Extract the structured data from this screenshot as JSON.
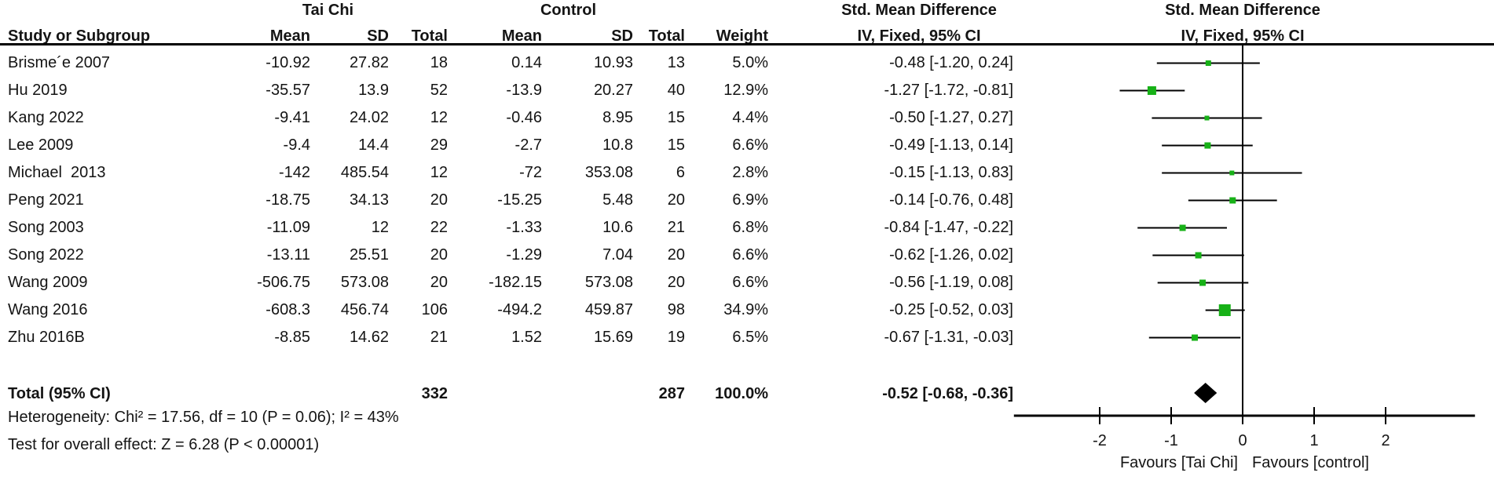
{
  "header": {
    "group1": "Tai Chi",
    "group2": "Control",
    "effect_col_title": "Std. Mean Difference",
    "effect_col_sub": "IV, Fixed, 95% CI",
    "plot_col_title": "Std. Mean Difference",
    "plot_col_sub": "IV, Fixed, 95% CI",
    "col_study": "Study or Subgroup",
    "col_mean1": "Mean",
    "col_sd1": "SD",
    "col_total1": "Total",
    "col_mean2": "Mean",
    "col_sd2": "SD",
    "col_total2": "Total",
    "col_weight": "Weight"
  },
  "total": {
    "label": "Total (95% CI)",
    "total1": "332",
    "total2": "287",
    "weight": "100.0%",
    "ci_text": "-0.52 [-0.68, -0.36]"
  },
  "footnotes": {
    "heterogeneity": "Heterogeneity: Chi² = 17.56, df = 10 (P = 0.06); I² = 43%",
    "overall_effect": "Test for overall effect: Z = 6.28 (P < 0.00001)"
  },
  "colors": {
    "marker_green": "#17B117",
    "line_black": "#000000",
    "diamond_black": "#000000"
  },
  "chart_data": {
    "type": "forest",
    "title": "Std. Mean Difference, IV, Fixed, 95% CI",
    "x_axis": {
      "ticks": [
        -2,
        -1,
        0,
        1,
        2
      ],
      "min": -3.2,
      "max": 3.25,
      "favours_left": "Favours [Tai Chi]",
      "favours_right": "Favours [control]"
    },
    "studies": [
      {
        "name": "Brisme´e 2007",
        "mean1": "-10.92",
        "sd1": "27.82",
        "total1": "18",
        "mean2": "0.14",
        "sd2": "10.93",
        "total2": "13",
        "weight": "5.0%",
        "weight_pct": 5.0,
        "ci_text": "-0.48 [-1.20, 0.24]",
        "est": -0.48,
        "lo": -1.2,
        "hi": 0.24
      },
      {
        "name": "Hu 2019",
        "mean1": "-35.57",
        "sd1": "13.9",
        "total1": "52",
        "mean2": "-13.9",
        "sd2": "20.27",
        "total2": "40",
        "weight": "12.9%",
        "weight_pct": 12.9,
        "ci_text": "-1.27 [-1.72, -0.81]",
        "est": -1.27,
        "lo": -1.72,
        "hi": -0.81
      },
      {
        "name": "Kang 2022",
        "mean1": "-9.41",
        "sd1": "24.02",
        "total1": "12",
        "mean2": "-0.46",
        "sd2": "8.95",
        "total2": "15",
        "weight": "4.4%",
        "weight_pct": 4.4,
        "ci_text": "-0.50 [-1.27, 0.27]",
        "est": -0.5,
        "lo": -1.27,
        "hi": 0.27
      },
      {
        "name": "Lee 2009",
        "mean1": "-9.4",
        "sd1": "14.4",
        "total1": "29",
        "mean2": "-2.7",
        "sd2": "10.8",
        "total2": "15",
        "weight": "6.6%",
        "weight_pct": 6.6,
        "ci_text": "-0.49 [-1.13, 0.14]",
        "est": -0.49,
        "lo": -1.13,
        "hi": 0.14
      },
      {
        "name": "Michael  2013",
        "mean1": "-142",
        "sd1": "485.54",
        "total1": "12",
        "mean2": "-72",
        "sd2": "353.08",
        "total2": "6",
        "weight": "2.8%",
        "weight_pct": 2.8,
        "ci_text": "-0.15 [-1.13, 0.83]",
        "est": -0.15,
        "lo": -1.13,
        "hi": 0.83
      },
      {
        "name": "Peng 2021",
        "mean1": "-18.75",
        "sd1": "34.13",
        "total1": "20",
        "mean2": "-15.25",
        "sd2": "5.48",
        "total2": "20",
        "weight": "6.9%",
        "weight_pct": 6.9,
        "ci_text": "-0.14 [-0.76, 0.48]",
        "est": -0.14,
        "lo": -0.76,
        "hi": 0.48
      },
      {
        "name": "Song 2003",
        "mean1": "-11.09",
        "sd1": "12",
        "total1": "22",
        "mean2": "-1.33",
        "sd2": "10.6",
        "total2": "21",
        "weight": "6.8%",
        "weight_pct": 6.8,
        "ci_text": "-0.84 [-1.47, -0.22]",
        "est": -0.84,
        "lo": -1.47,
        "hi": -0.22
      },
      {
        "name": "Song 2022",
        "mean1": "-13.11",
        "sd1": "25.51",
        "total1": "20",
        "mean2": "-1.29",
        "sd2": "7.04",
        "total2": "20",
        "weight": "6.6%",
        "weight_pct": 6.6,
        "ci_text": "-0.62 [-1.26, 0.02]",
        "est": -0.62,
        "lo": -1.26,
        "hi": 0.02
      },
      {
        "name": "Wang 2009",
        "mean1": "-506.75",
        "sd1": "573.08",
        "total1": "20",
        "mean2": "-182.15",
        "sd2": "573.08",
        "total2": "20",
        "weight": "6.6%",
        "weight_pct": 6.6,
        "ci_text": "-0.56 [-1.19, 0.08]",
        "est": -0.56,
        "lo": -1.19,
        "hi": 0.08
      },
      {
        "name": "Wang 2016",
        "mean1": "-608.3",
        "sd1": "456.74",
        "total1": "106",
        "mean2": "-494.2",
        "sd2": "459.87",
        "total2": "98",
        "weight": "34.9%",
        "weight_pct": 34.9,
        "ci_text": "-0.25 [-0.52, 0.03]",
        "est": -0.25,
        "lo": -0.52,
        "hi": 0.03
      },
      {
        "name": "Zhu 2016B",
        "mean1": "-8.85",
        "sd1": "14.62",
        "total1": "21",
        "mean2": "1.52",
        "sd2": "15.69",
        "total2": "19",
        "weight": "6.5%",
        "weight_pct": 6.5,
        "ci_text": "-0.67 [-1.31, -0.03]",
        "est": -0.67,
        "lo": -1.31,
        "hi": -0.03
      }
    ],
    "summary": {
      "label": "Total (95% CI)",
      "est": -0.52,
      "lo": -0.68,
      "hi": -0.36,
      "weight_pct": 100.0
    }
  }
}
